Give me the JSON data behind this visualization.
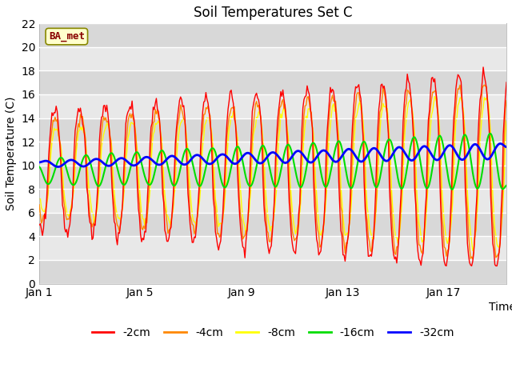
{
  "title": "Soil Temperatures Set C",
  "xlabel": "Time",
  "ylabel": "Soil Temperature (C)",
  "ylim": [
    0,
    22
  ],
  "yticks": [
    0,
    2,
    4,
    6,
    8,
    10,
    12,
    14,
    16,
    18,
    20,
    22
  ],
  "xlim_days": [
    0,
    18.5
  ],
  "xtick_positions": [
    0,
    4,
    8,
    12,
    16
  ],
  "xtick_labels": [
    "Jan 1",
    "Jan 5",
    "Jan 9",
    "Jan 13",
    "Jan 17"
  ],
  "colors": {
    "-2cm": "#ff0000",
    "-4cm": "#ff8800",
    "-8cm": "#ffff00",
    "-16cm": "#00dd00",
    "-32cm": "#0000ff"
  },
  "legend_labels": [
    "-2cm",
    "-4cm",
    "-8cm",
    "-16cm",
    "-32cm"
  ],
  "fig_bg_color": "#ffffff",
  "plot_bg_color": "#e8e8e8",
  "ba_met_box_color": "#ffffcc",
  "ba_met_text_color": "#880000",
  "title_fontsize": 12,
  "axis_label_fontsize": 10,
  "tick_fontsize": 10,
  "legend_fontsize": 10
}
